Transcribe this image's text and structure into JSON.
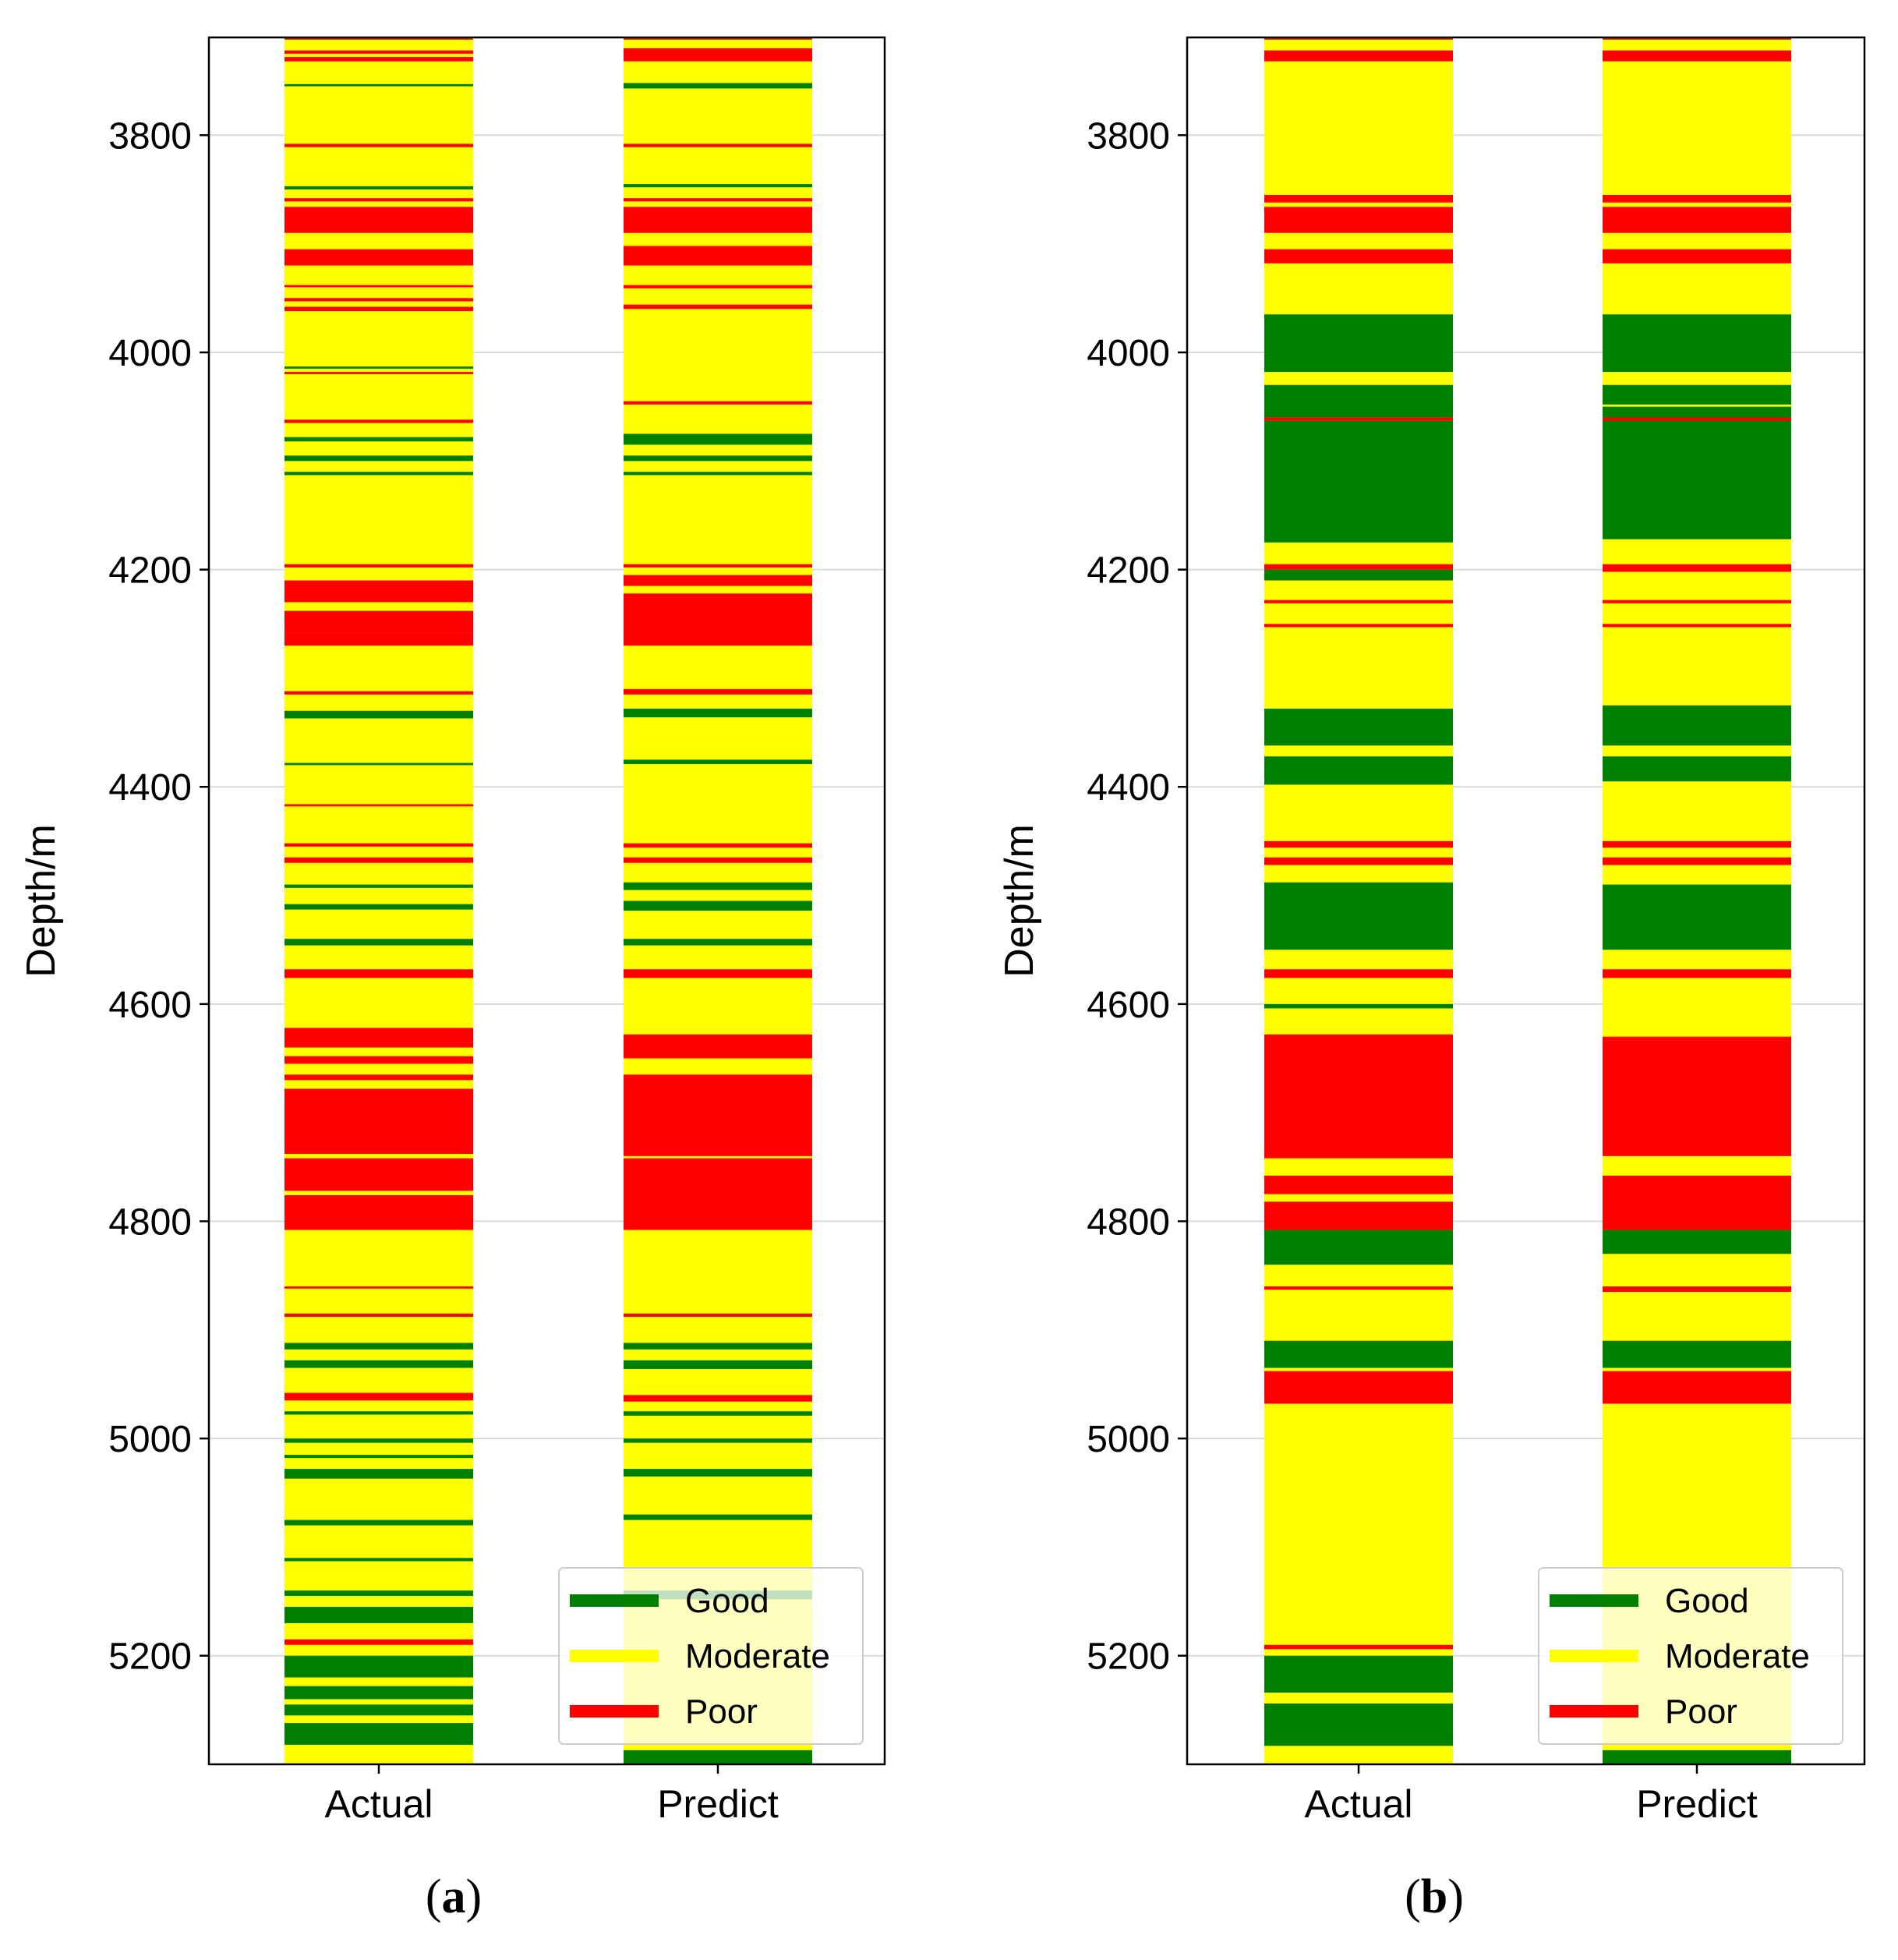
{
  "colors": {
    "Good": "#008000",
    "Moderate": "#ffff00",
    "Poor": "#ff0000",
    "grid": "#d9d9d9",
    "axis": "#000000"
  },
  "chart_data": [
    {
      "type": "strip-log",
      "panel_label": "a",
      "ylabel": "Depth/m",
      "ylim": [
        3710,
        5300
      ],
      "y_inverted": true,
      "yticks": [
        3800,
        4000,
        4200,
        4400,
        4600,
        4800,
        5000,
        5200
      ],
      "grid": true,
      "categories": [
        "Actual",
        "Predict"
      ],
      "legend": {
        "position": "lower-right",
        "entries": [
          "Good",
          "Moderate",
          "Poor"
        ]
      },
      "base_class": "Moderate",
      "series": [
        {
          "name": "Actual",
          "intervals": [
            [
              3710,
              3712,
              "Poor"
            ],
            [
              3722,
              3725,
              "Poor"
            ],
            [
              3728,
              3732,
              "Poor"
            ],
            [
              3753,
              3755,
              "Good"
            ],
            [
              3808,
              3811,
              "Poor"
            ],
            [
              3847,
              3850,
              "Good"
            ],
            [
              3858,
              3861,
              "Poor"
            ],
            [
              3866,
              3890,
              "Poor"
            ],
            [
              3905,
              3920,
              "Poor"
            ],
            [
              3938,
              3940,
              "Poor"
            ],
            [
              3950,
              3953,
              "Poor"
            ],
            [
              3958,
              3962,
              "Poor"
            ],
            [
              4013,
              4015,
              "Good"
            ],
            [
              4018,
              4020,
              "Poor"
            ],
            [
              4062,
              4065,
              "Poor"
            ],
            [
              4078,
              4082,
              "Good"
            ],
            [
              4095,
              4100,
              "Good"
            ],
            [
              4110,
              4113,
              "Good"
            ],
            [
              4195,
              4198,
              "Poor"
            ],
            [
              4210,
              4230,
              "Poor"
            ],
            [
              4238,
              4258,
              "Poor"
            ],
            [
              4258,
              4270,
              "Poor"
            ],
            [
              4312,
              4315,
              "Poor"
            ],
            [
              4330,
              4337,
              "Good"
            ],
            [
              4378,
              4380,
              "Good"
            ],
            [
              4416,
              4418,
              "Poor"
            ],
            [
              4452,
              4455,
              "Poor"
            ],
            [
              4465,
              4470,
              "Poor"
            ],
            [
              4490,
              4493,
              "Good"
            ],
            [
              4508,
              4513,
              "Good"
            ],
            [
              4540,
              4546,
              "Good"
            ],
            [
              4568,
              4576,
              "Poor"
            ],
            [
              4622,
              4640,
              "Poor"
            ],
            [
              4648,
              4655,
              "Poor"
            ],
            [
              4665,
              4670,
              "Poor"
            ],
            [
              4678,
              4738,
              "Poor"
            ],
            [
              4742,
              4772,
              "Poor"
            ],
            [
              4776,
              4808,
              "Poor"
            ],
            [
              4860,
              4862,
              "Poor"
            ],
            [
              4885,
              4888,
              "Poor"
            ],
            [
              4912,
              4918,
              "Good"
            ],
            [
              4928,
              4935,
              "Good"
            ],
            [
              4958,
              4965,
              "Poor"
            ],
            [
              4975,
              4978,
              "Good"
            ],
            [
              5000,
              5004,
              "Good"
            ],
            [
              5015,
              5018,
              "Good"
            ],
            [
              5028,
              5037,
              "Good"
            ],
            [
              5075,
              5080,
              "Good"
            ],
            [
              5110,
              5113,
              "Good"
            ],
            [
              5140,
              5145,
              "Good"
            ],
            [
              5155,
              5170,
              "Good"
            ],
            [
              5185,
              5190,
              "Poor"
            ],
            [
              5200,
              5220,
              "Good"
            ],
            [
              5228,
              5240,
              "Good"
            ],
            [
              5245,
              5255,
              "Good"
            ],
            [
              5262,
              5282,
              "Good"
            ]
          ]
        },
        {
          "name": "Predict",
          "intervals": [
            [
              3710,
              3712,
              "Poor"
            ],
            [
              3720,
              3732,
              "Poor"
            ],
            [
              3752,
              3757,
              "Good"
            ],
            [
              3808,
              3811,
              "Poor"
            ],
            [
              3845,
              3848,
              "Good"
            ],
            [
              3858,
              3861,
              "Poor"
            ],
            [
              3866,
              3890,
              "Poor"
            ],
            [
              3902,
              3920,
              "Poor"
            ],
            [
              3938,
              3941,
              "Poor"
            ],
            [
              3956,
              3960,
              "Poor"
            ],
            [
              4045,
              4048,
              "Poor"
            ],
            [
              4075,
              4085,
              "Good"
            ],
            [
              4095,
              4100,
              "Good"
            ],
            [
              4110,
              4113,
              "Good"
            ],
            [
              4195,
              4198,
              "Poor"
            ],
            [
              4205,
              4215,
              "Poor"
            ],
            [
              4222,
              4270,
              "Poor"
            ],
            [
              4310,
              4315,
              "Poor"
            ],
            [
              4328,
              4336,
              "Good"
            ],
            [
              4375,
              4379,
              "Good"
            ],
            [
              4452,
              4456,
              "Poor"
            ],
            [
              4465,
              4470,
              "Poor"
            ],
            [
              4488,
              4495,
              "Good"
            ],
            [
              4505,
              4514,
              "Good"
            ],
            [
              4540,
              4546,
              "Good"
            ],
            [
              4568,
              4576,
              "Poor"
            ],
            [
              4628,
              4650,
              "Poor"
            ],
            [
              4665,
              4740,
              "Poor"
            ],
            [
              4742,
              4808,
              "Poor"
            ],
            [
              4885,
              4888,
              "Poor"
            ],
            [
              4912,
              4918,
              "Good"
            ],
            [
              4928,
              4936,
              "Good"
            ],
            [
              4960,
              4966,
              "Poor"
            ],
            [
              4975,
              4979,
              "Good"
            ],
            [
              5000,
              5004,
              "Good"
            ],
            [
              5028,
              5035,
              "Good"
            ],
            [
              5070,
              5075,
              "Good"
            ],
            [
              5140,
              5148,
              "Good"
            ],
            [
              5287,
              5300,
              "Good"
            ]
          ]
        }
      ]
    },
    {
      "type": "strip-log",
      "panel_label": "b",
      "ylabel": "Depth/m",
      "ylim": [
        3710,
        5300
      ],
      "y_inverted": true,
      "yticks": [
        3800,
        4000,
        4200,
        4400,
        4600,
        4800,
        5000,
        5200
      ],
      "grid": true,
      "categories": [
        "Actual",
        "Predict"
      ],
      "legend": {
        "position": "lower-right",
        "entries": [
          "Good",
          "Moderate",
          "Poor"
        ]
      },
      "base_class": "Moderate",
      "series": [
        {
          "name": "Actual",
          "intervals": [
            [
              3710,
              3712,
              "Poor"
            ],
            [
              3722,
              3732,
              "Poor"
            ],
            [
              3855,
              3862,
              "Poor"
            ],
            [
              3866,
              3890,
              "Poor"
            ],
            [
              3905,
              3918,
              "Poor"
            ],
            [
              3965,
              4018,
              "Good"
            ],
            [
              4030,
              4060,
              "Good"
            ],
            [
              4060,
              4063,
              "Poor"
            ],
            [
              4063,
              4175,
              "Good"
            ],
            [
              4195,
              4200,
              "Poor"
            ],
            [
              4200,
              4210,
              "Good"
            ],
            [
              4228,
              4231,
              "Poor"
            ],
            [
              4250,
              4253,
              "Poor"
            ],
            [
              4328,
              4362,
              "Good"
            ],
            [
              4372,
              4398,
              "Good"
            ],
            [
              4450,
              4456,
              "Poor"
            ],
            [
              4465,
              4472,
              "Poor"
            ],
            [
              4488,
              4550,
              "Good"
            ],
            [
              4568,
              4576,
              "Poor"
            ],
            [
              4600,
              4604,
              "Good"
            ],
            [
              4628,
              4742,
              "Poor"
            ],
            [
              4758,
              4775,
              "Poor"
            ],
            [
              4782,
              4808,
              "Poor"
            ],
            [
              4808,
              4840,
              "Good"
            ],
            [
              4860,
              4863,
              "Poor"
            ],
            [
              4910,
              4935,
              "Good"
            ],
            [
              4938,
              4968,
              "Poor"
            ],
            [
              5190,
              5194,
              "Poor"
            ],
            [
              5200,
              5234,
              "Good"
            ],
            [
              5244,
              5283,
              "Good"
            ]
          ]
        },
        {
          "name": "Predict",
          "intervals": [
            [
              3710,
              3712,
              "Poor"
            ],
            [
              3722,
              3732,
              "Poor"
            ],
            [
              3855,
              3862,
              "Poor"
            ],
            [
              3866,
              3890,
              "Poor"
            ],
            [
              3905,
              3918,
              "Poor"
            ],
            [
              3965,
              4018,
              "Good"
            ],
            [
              4030,
              4048,
              "Good"
            ],
            [
              4050,
              4172,
              "Good"
            ],
            [
              4060,
              4063,
              "Poor"
            ],
            [
              4195,
              4202,
              "Poor"
            ],
            [
              4228,
              4231,
              "Poor"
            ],
            [
              4250,
              4253,
              "Poor"
            ],
            [
              4325,
              4362,
              "Good"
            ],
            [
              4372,
              4395,
              "Good"
            ],
            [
              4450,
              4456,
              "Poor"
            ],
            [
              4465,
              4472,
              "Poor"
            ],
            [
              4490,
              4550,
              "Good"
            ],
            [
              4568,
              4576,
              "Poor"
            ],
            [
              4630,
              4740,
              "Poor"
            ],
            [
              4758,
              4808,
              "Poor"
            ],
            [
              4808,
              4830,
              "Good"
            ],
            [
              4860,
              4865,
              "Poor"
            ],
            [
              4910,
              4935,
              "Good"
            ],
            [
              4938,
              4968,
              "Poor"
            ],
            [
              5287,
              5300,
              "Good"
            ]
          ]
        }
      ]
    }
  ]
}
